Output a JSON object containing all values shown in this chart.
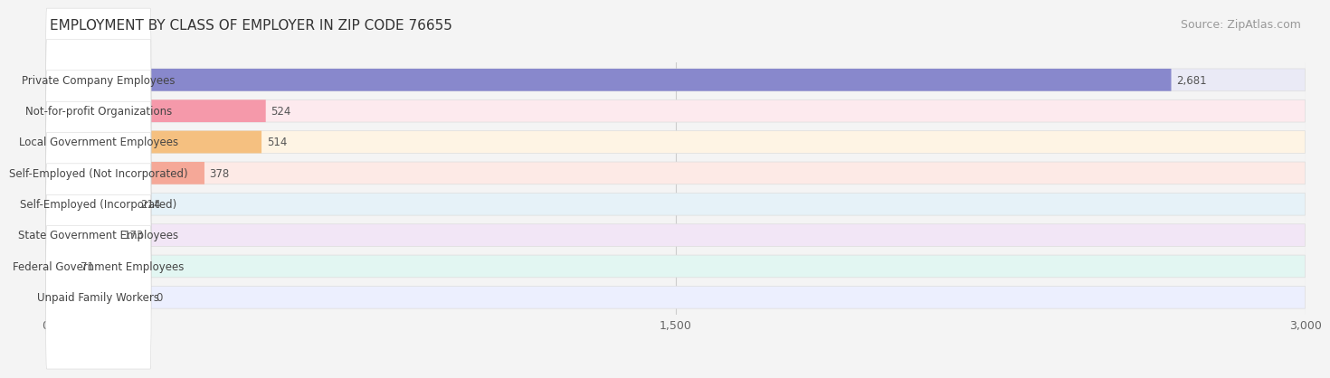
{
  "title": "EMPLOYMENT BY CLASS OF EMPLOYER IN ZIP CODE 76655",
  "source": "Source: ZipAtlas.com",
  "categories": [
    "Private Company Employees",
    "Not-for-profit Organizations",
    "Local Government Employees",
    "Self-Employed (Not Incorporated)",
    "Self-Employed (Incorporated)",
    "State Government Employees",
    "Federal Government Employees",
    "Unpaid Family Workers"
  ],
  "values": [
    2681,
    524,
    514,
    378,
    214,
    173,
    71,
    0
  ],
  "bar_colors": [
    "#8888cc",
    "#f599aa",
    "#f5c080",
    "#f5a898",
    "#99bedd",
    "#c49acc",
    "#6ec8b8",
    "#aab8e8"
  ],
  "bar_bg_colors": [
    "#eaeaf6",
    "#fdeaee",
    "#fef4e4",
    "#fdeae6",
    "#e6f2f8",
    "#f2e6f6",
    "#e2f6f2",
    "#eceffe"
  ],
  "xlim": [
    0,
    3000
  ],
  "xticks": [
    0,
    1500,
    3000
  ],
  "xtick_labels": [
    "0",
    "1,500",
    "3,000"
  ],
  "title_fontsize": 11,
  "source_fontsize": 9,
  "label_fontsize": 8.5,
  "value_fontsize": 8.5,
  "background_color": "#f4f4f4"
}
